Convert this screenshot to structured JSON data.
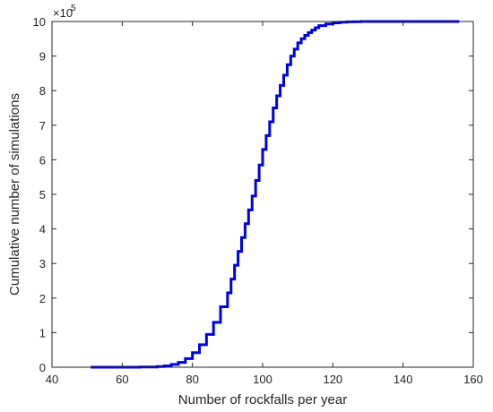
{
  "chart_data": {
    "type": "line",
    "title": "",
    "xlabel": "Number of rockfalls per year",
    "ylabel": "Cumulative number of simulations",
    "y_exponent_label": "×10",
    "y_exponent_power": "5",
    "xlim": [
      40,
      160
    ],
    "ylim": [
      0,
      10
    ],
    "xticks": [
      "40",
      "60",
      "80",
      "100",
      "120",
      "140",
      "160"
    ],
    "yticks": [
      "0",
      "1",
      "2",
      "3",
      "4",
      "5",
      "6",
      "7",
      "8",
      "9",
      "10"
    ],
    "grid": false,
    "legend": "none",
    "series": [
      {
        "color": "#0000e6",
        "style": "stairs",
        "x": [
          51,
          60,
          65,
          70,
          72,
          74,
          76,
          78,
          80,
          82,
          84,
          86,
          88,
          90,
          91,
          92,
          93,
          94,
          95,
          96,
          97,
          98,
          99,
          100,
          101,
          102,
          103,
          104,
          105,
          106,
          107,
          108,
          109,
          110,
          111,
          112,
          113,
          114,
          115,
          116,
          118,
          120,
          122,
          124,
          126,
          128,
          130,
          135,
          140,
          150,
          156
        ],
        "y": [
          0,
          0,
          0.005,
          0.02,
          0.04,
          0.08,
          0.14,
          0.25,
          0.42,
          0.65,
          0.95,
          1.3,
          1.75,
          2.15,
          2.55,
          2.95,
          3.35,
          3.75,
          4.15,
          4.55,
          4.95,
          5.4,
          5.85,
          6.3,
          6.7,
          7.1,
          7.5,
          7.85,
          8.15,
          8.45,
          8.75,
          9.0,
          9.2,
          9.38,
          9.5,
          9.6,
          9.68,
          9.75,
          9.82,
          9.88,
          9.93,
          9.96,
          9.98,
          9.99,
          9.995,
          10,
          10,
          10,
          10,
          10,
          10
        ]
      }
    ]
  }
}
